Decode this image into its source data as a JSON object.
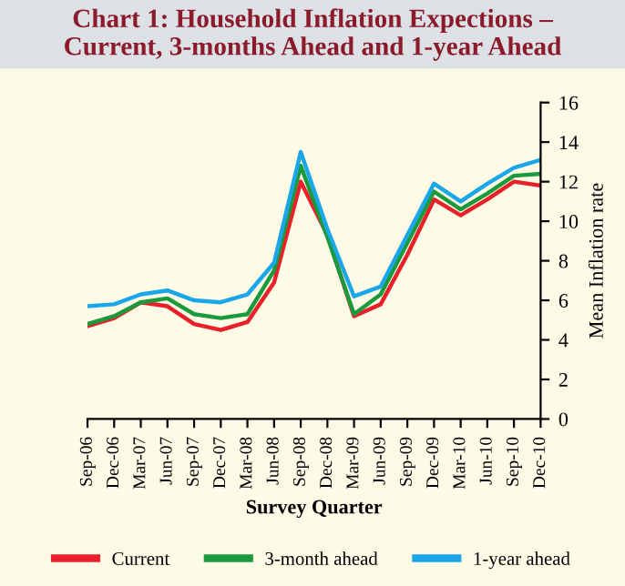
{
  "chart_data": {
    "type": "line",
    "title": "Chart 1: Household Inflation Expections –\nCurrent, 3-months Ahead and 1-year Ahead",
    "xlabel": "Survey Quarter",
    "ylabel": "Mean Inflation rate",
    "categories": [
      "Sep-06",
      "Dec-06",
      "Mar-07",
      "Jun-07",
      "Sep-07",
      "Dec-07",
      "Mar-08",
      "Jun-08",
      "Sep-08",
      "Dec-08",
      "Mar-09",
      "Jun-09",
      "Sep-09",
      "Dec-09",
      "Mar-10",
      "Jun-10",
      "Sep-10",
      "Dec-10"
    ],
    "series": [
      {
        "name": "Current",
        "color": "#e8202a",
        "values": [
          4.7,
          5.1,
          5.9,
          5.7,
          4.8,
          4.5,
          4.9,
          6.9,
          12.0,
          9.3,
          5.2,
          5.8,
          8.3,
          11.1,
          10.3,
          11.1,
          12.0,
          11.8
        ]
      },
      {
        "name": "3-month ahead",
        "color": "#1a9a3c",
        "values": [
          4.8,
          5.2,
          5.9,
          6.1,
          5.3,
          5.1,
          5.3,
          7.5,
          12.8,
          9.2,
          5.3,
          6.3,
          8.9,
          11.5,
          10.6,
          11.4,
          12.3,
          12.4
        ]
      },
      {
        "name": "1-year ahead",
        "color": "#1aa6e8",
        "values": [
          5.7,
          5.8,
          6.3,
          6.5,
          6.0,
          5.9,
          6.3,
          7.9,
          13.5,
          9.6,
          6.2,
          6.7,
          9.3,
          11.9,
          11.0,
          11.9,
          12.7,
          13.1
        ]
      }
    ],
    "ylim": [
      0,
      16
    ],
    "yticks": [
      0,
      2,
      4,
      6,
      8,
      10,
      12,
      14,
      16
    ],
    "grid": false,
    "legend": "bottom"
  }
}
